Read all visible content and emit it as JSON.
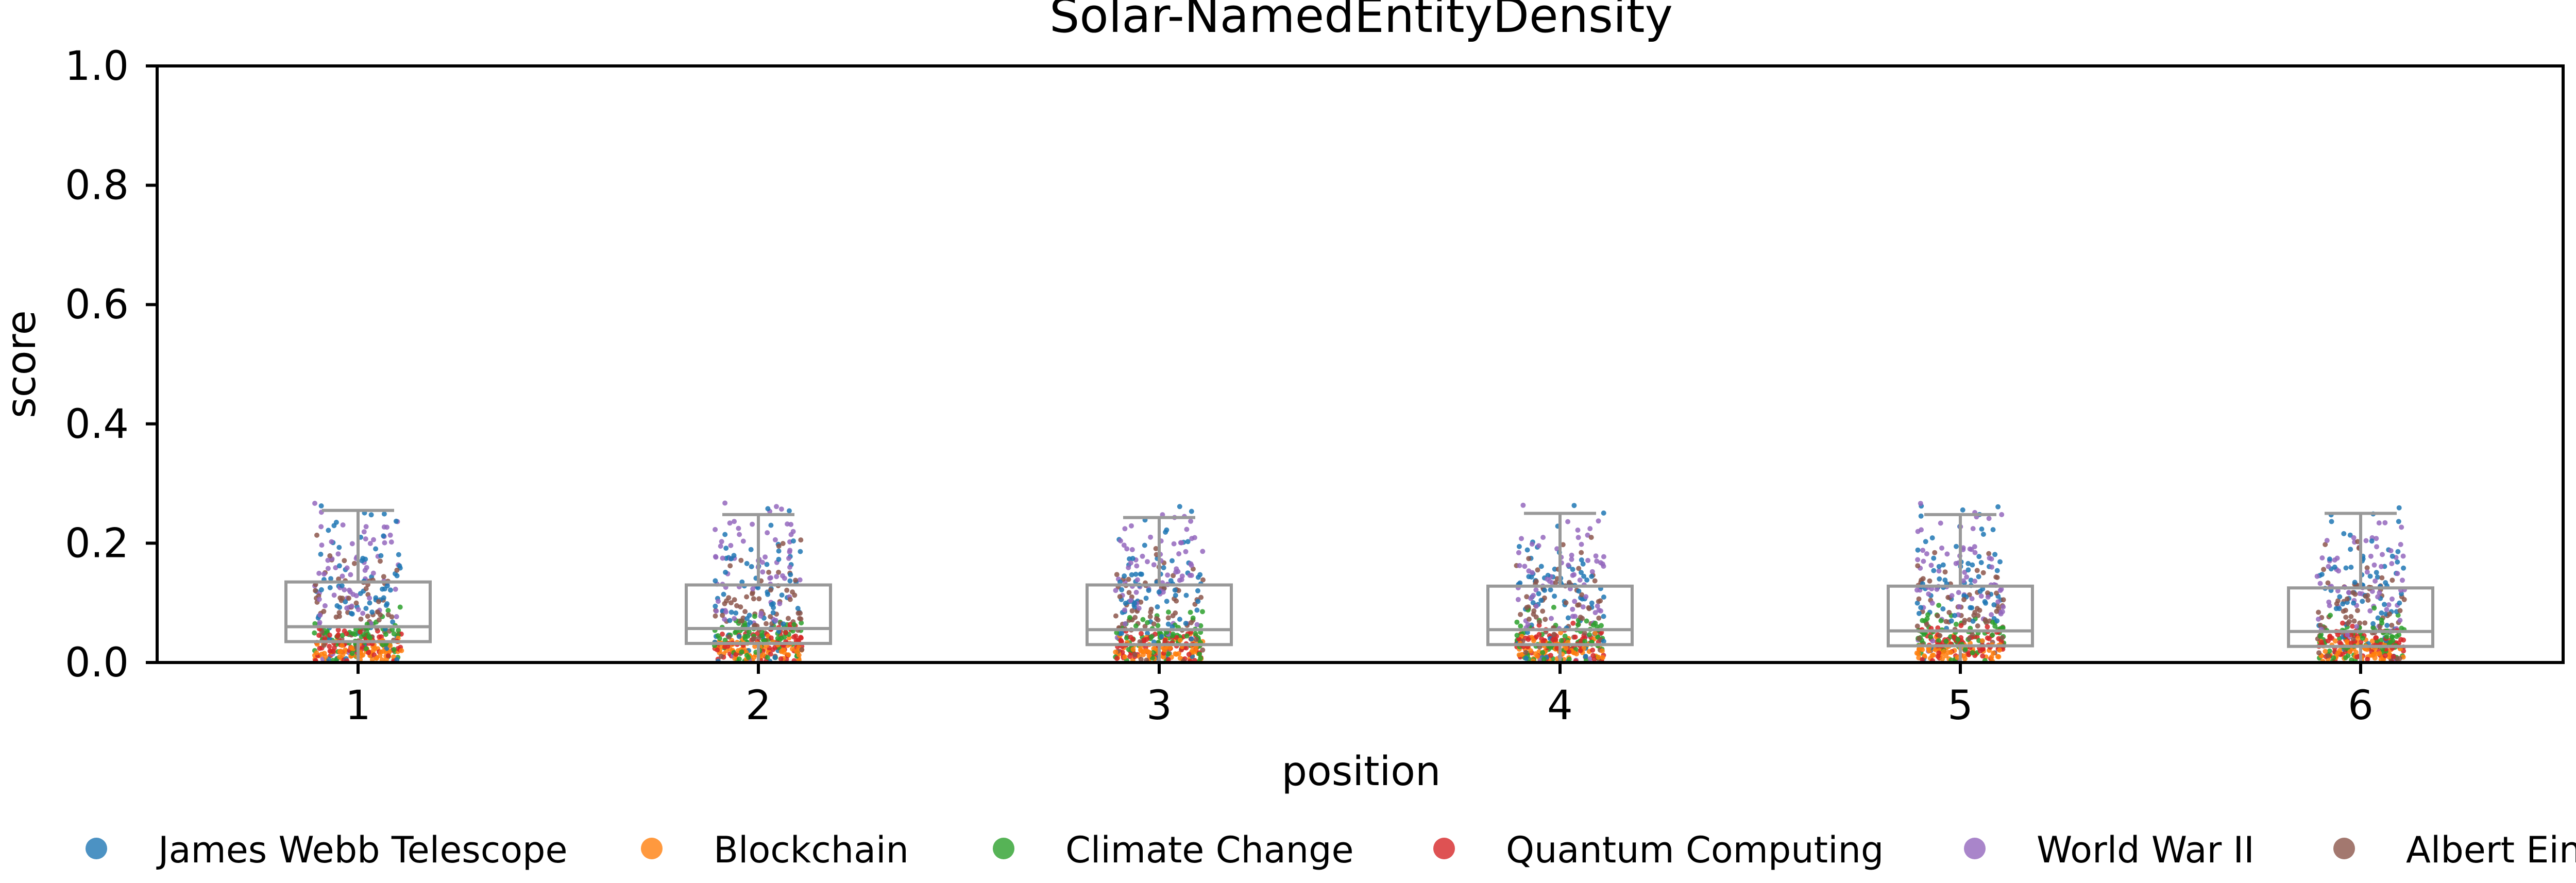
{
  "chart_data": {
    "type": "box-strip",
    "title": "Solar-NamedEntityDensity",
    "xlabel": "position",
    "ylabel": "score",
    "ylim": [
      0,
      1
    ],
    "yticks": [
      "0.0",
      "0.2",
      "0.4",
      "0.6",
      "0.8",
      "1.0"
    ],
    "categories": [
      "1",
      "2",
      "3",
      "4",
      "5",
      "6"
    ],
    "grid": false,
    "legend_position": "bottom",
    "box_color": "#999999",
    "boxes": [
      {
        "category": "1",
        "whisker_low": 0.0,
        "q1": 0.035,
        "median": 0.06,
        "q3": 0.135,
        "whisker_high": 0.255
      },
      {
        "category": "2",
        "whisker_low": 0.0,
        "q1": 0.032,
        "median": 0.057,
        "q3": 0.13,
        "whisker_high": 0.248
      },
      {
        "category": "3",
        "whisker_low": 0.0,
        "q1": 0.03,
        "median": 0.055,
        "q3": 0.13,
        "whisker_high": 0.243
      },
      {
        "category": "4",
        "whisker_low": 0.0,
        "q1": 0.03,
        "median": 0.055,
        "q3": 0.128,
        "whisker_high": 0.25
      },
      {
        "category": "5",
        "whisker_low": 0.0,
        "q1": 0.028,
        "median": 0.053,
        "q3": 0.128,
        "whisker_high": 0.248
      },
      {
        "category": "6",
        "whisker_low": 0.0,
        "q1": 0.027,
        "median": 0.052,
        "q3": 0.125,
        "whisker_high": 0.25
      }
    ],
    "series": [
      {
        "name": "James Webb Telescope",
        "color": "#1f77b4",
        "center": 0.12,
        "spread": 0.065,
        "max": 0.265
      },
      {
        "name": "Blockchain",
        "color": "#ff7f0e",
        "center": 0.02,
        "spread": 0.012,
        "max": 0.06
      },
      {
        "name": "Climate Change",
        "color": "#2ca02c",
        "center": 0.04,
        "spread": 0.02,
        "max": 0.1
      },
      {
        "name": "Quantum Computing",
        "color": "#d62728",
        "center": 0.03,
        "spread": 0.015,
        "max": 0.08
      },
      {
        "name": "World War II",
        "color": "#9467bd",
        "center": 0.14,
        "spread": 0.06,
        "max": 0.27
      },
      {
        "name": "Albert Einstein",
        "color": "#8c564b",
        "center": 0.085,
        "spread": 0.045,
        "max": 0.22
      }
    ]
  }
}
